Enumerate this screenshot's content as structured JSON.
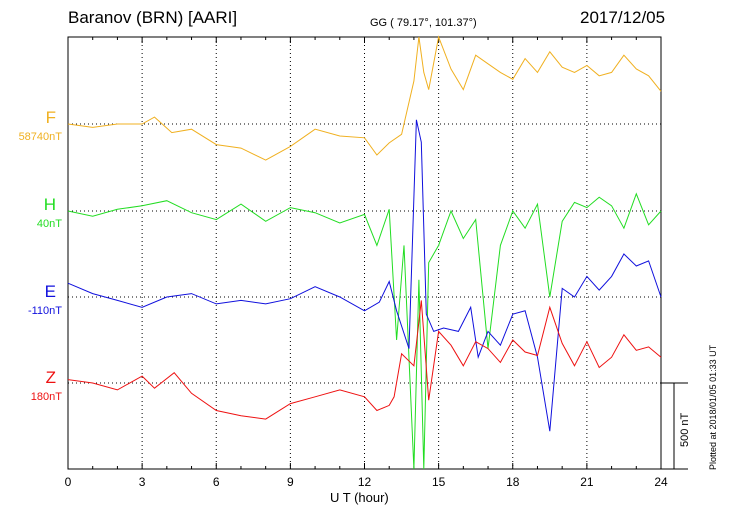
{
  "header": {
    "title": "Baranov (BRN)  [AARI]",
    "coords": "GG ( 79.17°, 101.37°)",
    "date": "2017/12/05"
  },
  "plotted_note": "Plotted at 2018/01/05 01:33 UT",
  "scale_label": "500 nT",
  "colors": {
    "F": "#f0b020",
    "H": "#22dd22",
    "E": "#1010dd",
    "Z": "#ee1111"
  },
  "chart_data": {
    "type": "line",
    "xlabel": "U T (hour)",
    "xlim": [
      0,
      24
    ],
    "x_ticks": [
      "0",
      "3",
      "6",
      "9",
      "12",
      "15",
      "18",
      "21",
      "24"
    ],
    "grid": true,
    "scale_bar_nT": 500,
    "series": [
      {
        "name": "F",
        "baseline": "58740nT",
        "color": "#f0b020",
        "x": [
          0,
          1,
          2,
          3,
          3.5,
          4.2,
          5,
          6,
          7,
          8,
          9,
          10,
          11,
          12,
          12.5,
          13,
          13.5,
          14,
          14.2,
          14.4,
          14.6,
          15,
          15.5,
          16,
          16.5,
          17,
          17.5,
          18,
          18.5,
          19,
          19.5,
          20,
          20.5,
          21,
          21.5,
          22,
          22.5,
          23,
          23.5,
          24
        ],
        "y": [
          0,
          -20,
          0,
          0,
          40,
          -50,
          -30,
          -120,
          -140,
          -210,
          -130,
          -30,
          -70,
          -80,
          -180,
          -110,
          -60,
          250,
          700,
          300,
          200,
          550,
          320,
          200,
          400,
          350,
          300,
          260,
          380,
          300,
          420,
          330,
          300,
          340,
          280,
          300,
          400,
          320,
          280,
          190
        ]
      },
      {
        "name": "H",
        "baseline": "40nT",
        "color": "#22dd22",
        "x": [
          0,
          1,
          2,
          3,
          4,
          5,
          6,
          7,
          8,
          9,
          10,
          11,
          12,
          12.5,
          13,
          13.3,
          13.6,
          14,
          14.2,
          14.4,
          14.6,
          15,
          15.5,
          16,
          16.5,
          17,
          17.5,
          18,
          18.5,
          19,
          19.5,
          20,
          20.5,
          21,
          21.5,
          22,
          22.5,
          23,
          23.5,
          24
        ],
        "y": [
          0,
          -30,
          10,
          30,
          60,
          -10,
          -50,
          40,
          -60,
          20,
          -10,
          -70,
          -20,
          -200,
          10,
          -750,
          -200,
          -1520,
          -400,
          -2230,
          -300,
          -200,
          0,
          -160,
          -50,
          -800,
          -200,
          0,
          -100,
          40,
          -500,
          -60,
          50,
          20,
          80,
          30,
          -100,
          100,
          -80,
          0
        ]
      },
      {
        "name": "E",
        "baseline": "-110nT",
        "color": "#1010dd",
        "x": [
          0,
          1,
          2,
          3,
          4,
          5,
          6,
          7,
          8,
          9,
          10,
          11,
          12,
          12.6,
          13,
          13.3,
          13.8,
          14.1,
          14.3,
          14.5,
          14.8,
          15.2,
          15.8,
          16.3,
          16.6,
          17,
          17.5,
          18,
          18.5,
          19,
          19.5,
          20,
          20.5,
          21,
          21.5,
          22,
          22.5,
          23,
          23.5,
          24
        ],
        "y": [
          80,
          20,
          -20,
          -60,
          0,
          20,
          -40,
          -20,
          -40,
          -10,
          60,
          0,
          -80,
          -30,
          90,
          -80,
          -300,
          1030,
          900,
          -100,
          -200,
          -180,
          -200,
          -60,
          -350,
          -200,
          -280,
          -100,
          -80,
          -350,
          -780,
          50,
          0,
          120,
          40,
          120,
          250,
          180,
          210,
          0
        ]
      },
      {
        "name": "Z",
        "baseline": "180nT",
        "color": "#ee1111",
        "x": [
          0,
          1,
          2,
          3,
          3.5,
          4.3,
          5,
          6,
          7,
          8,
          9,
          10,
          11,
          12,
          12.5,
          13,
          13.2,
          13.5,
          14,
          14.3,
          14.6,
          15,
          15.5,
          16,
          16.5,
          17,
          17.5,
          18,
          18.5,
          19,
          19.5,
          20,
          20.5,
          21,
          21.5,
          22,
          22.5,
          23,
          23.5,
          24
        ],
        "y": [
          20,
          0,
          -40,
          40,
          -30,
          60,
          -60,
          -160,
          -190,
          -210,
          -120,
          -80,
          -40,
          -80,
          -160,
          -130,
          -80,
          170,
          100,
          480,
          -100,
          300,
          220,
          100,
          240,
          200,
          120,
          250,
          180,
          160,
          440,
          230,
          100,
          240,
          90,
          150,
          280,
          190,
          210,
          150
        ]
      }
    ]
  }
}
